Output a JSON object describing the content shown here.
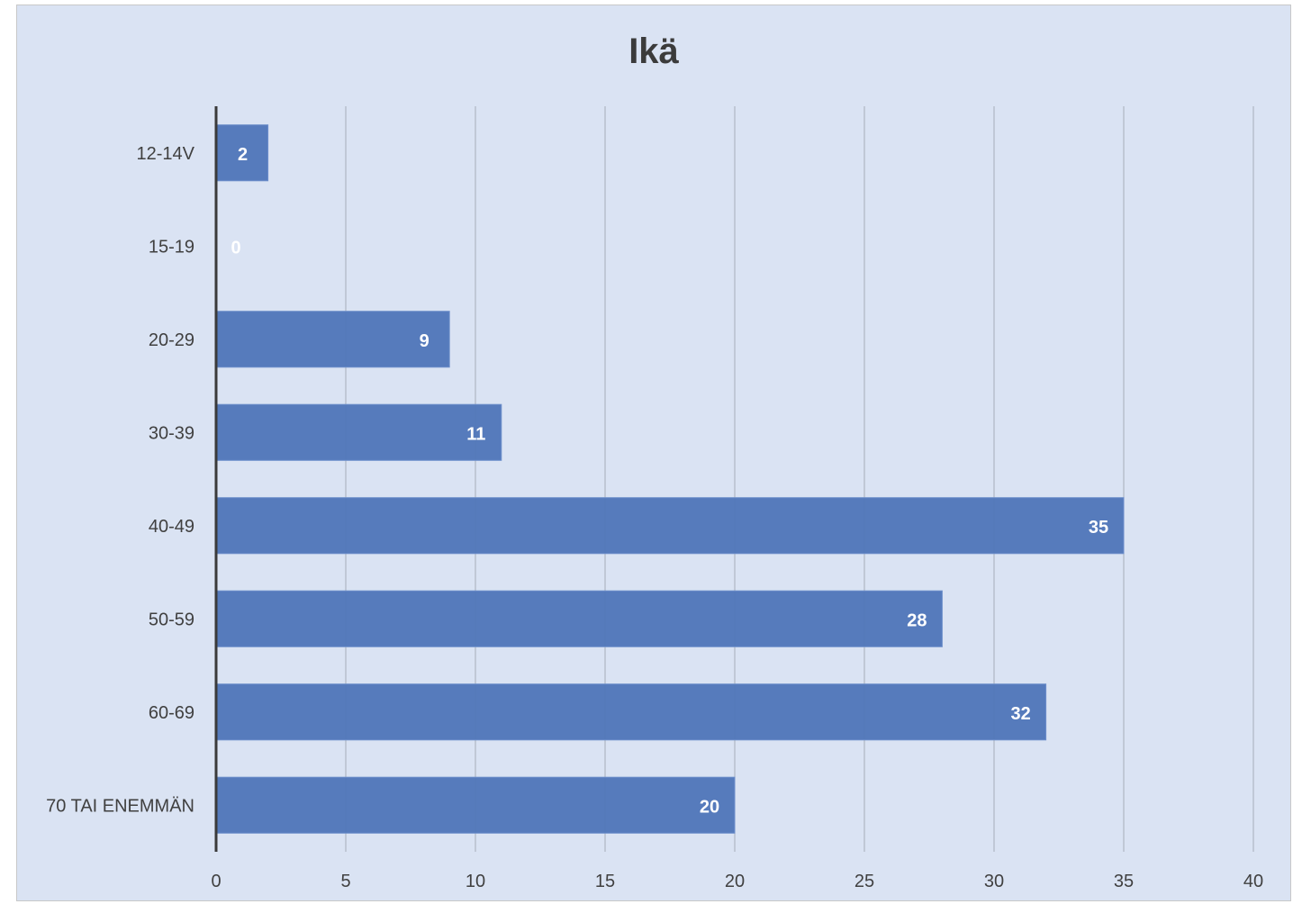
{
  "chart_data": {
    "type": "bar",
    "orientation": "horizontal",
    "title": "Ikä",
    "xlabel": "",
    "ylabel": "",
    "categories": [
      "12-14V",
      "15-19",
      "20-29",
      "30-39",
      "40-49",
      "50-59",
      "60-69",
      "70 TAI ENEMMÄN"
    ],
    "values": [
      2,
      0,
      9,
      11,
      35,
      28,
      32,
      20
    ],
    "xlim": [
      0,
      40
    ],
    "xticks": [
      "0",
      "5",
      "10",
      "15",
      "20",
      "25",
      "30",
      "35",
      "40"
    ],
    "grid": true,
    "legend": "none",
    "data_labels": true,
    "colors": {
      "bar": "#4f75b8",
      "background": "#dae3f3",
      "grid": "#a6adb8",
      "axis": "#3a3a3a"
    }
  }
}
